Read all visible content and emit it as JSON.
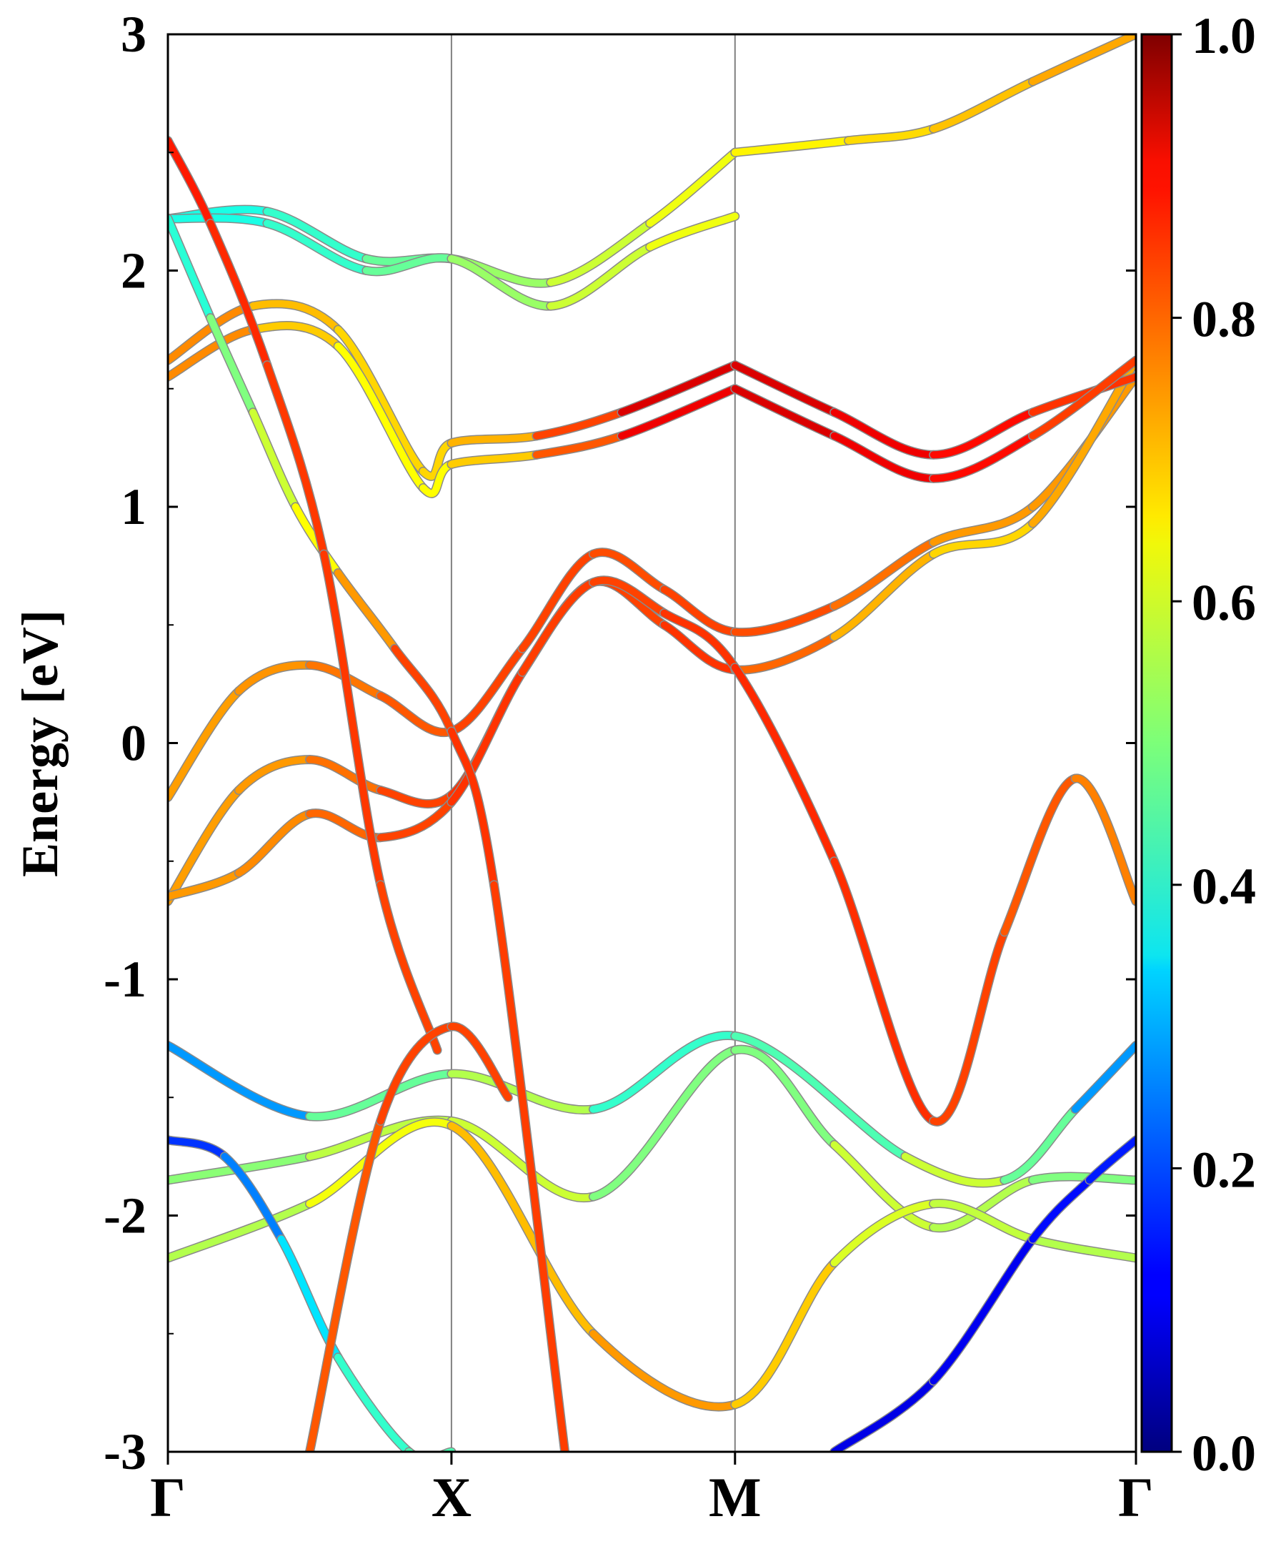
{
  "chart_data": {
    "type": "line",
    "title": "",
    "xlabel": "",
    "ylabel": "Energy [eV]",
    "ylim": [
      -3,
      3
    ],
    "x_ticks": [
      "Γ",
      "X",
      "M",
      "Γ"
    ],
    "x_tick_positions": [
      0,
      1,
      2,
      3.414
    ],
    "y_ticks": [
      "-3",
      "-2",
      "-1",
      "0",
      "1",
      "2",
      "3"
    ],
    "colorbar": {
      "min": 0.0,
      "max": 1.0,
      "colormap": "jet",
      "tick_labels": [
        "0.0",
        "0.2",
        "0.4",
        "0.6",
        "0.8",
        "1.0"
      ]
    },
    "grid": false,
    "series": [
      {
        "x": [
          0,
          0.25,
          0.5,
          0.75,
          1.0,
          1.25,
          1.5,
          1.75,
          2.0,
          2.35,
          2.7,
          3.05,
          3.414
        ],
        "y": [
          -0.23,
          0.22,
          0.33,
          0.2,
          0.05,
          0.4,
          0.8,
          0.65,
          0.47,
          0.58,
          0.85,
          1.0,
          1.55
        ],
        "weight": [
          0.72,
          0.72,
          0.74,
          0.78,
          0.8,
          0.82,
          0.8,
          0.8,
          0.82,
          0.78,
          0.75,
          0.7,
          0.75
        ]
      },
      {
        "x": [
          0,
          0.25,
          0.5,
          0.75,
          1.0,
          1.25,
          1.5,
          1.75,
          2.0,
          2.35,
          2.7,
          3.05,
          3.414
        ],
        "y": [
          -0.67,
          -0.2,
          -0.07,
          -0.2,
          -0.22,
          0.3,
          0.68,
          0.5,
          0.31,
          0.45,
          0.8,
          0.93,
          1.62
        ],
        "weight": [
          0.72,
          0.72,
          0.73,
          0.8,
          0.82,
          0.83,
          0.8,
          0.82,
          0.83,
          0.72,
          0.68,
          0.65,
          0.77
        ]
      },
      {
        "x": [
          0,
          0.25,
          0.5,
          0.75,
          1.0,
          1.25,
          1.5,
          1.75,
          2.0,
          2.35,
          2.7,
          2.95,
          3.2,
          3.414
        ],
        "y": [
          -0.65,
          -0.55,
          -0.3,
          -0.4,
          -0.25,
          0.3,
          0.68,
          0.55,
          0.32,
          -0.5,
          -1.6,
          -0.8,
          -0.15,
          -0.67
        ],
        "weight": [
          0.72,
          0.73,
          0.75,
          0.8,
          0.82,
          0.83,
          0.8,
          0.82,
          0.83,
          0.84,
          0.82,
          0.8,
          0.78,
          0.72
        ]
      },
      {
        "x": [
          0,
          0.5,
          1.0,
          1.5,
          2.0,
          2.6,
          2.95,
          3.2,
          3.414
        ],
        "y": [
          -1.28,
          -1.58,
          -1.4,
          -1.55,
          -1.24,
          -1.75,
          -1.85,
          -1.55,
          -1.28
        ],
        "weight": [
          0.2,
          0.35,
          0.6,
          0.5,
          0.35,
          0.55,
          0.6,
          0.35,
          0.2
        ]
      },
      {
        "x": [
          0,
          0.5,
          1.0,
          1.5,
          2.0,
          2.35,
          2.7,
          3.05,
          3.414
        ],
        "y": [
          -1.85,
          -1.75,
          -1.6,
          -1.92,
          -1.3,
          -1.7,
          -2.05,
          -1.85,
          -1.85
        ],
        "weight": [
          0.5,
          0.52,
          0.6,
          0.55,
          0.45,
          0.55,
          0.6,
          0.5,
          0.5
        ]
      },
      {
        "x": [
          0,
          0.5,
          1.0,
          1.5,
          2.0,
          2.35,
          2.7,
          3.05,
          3.414
        ],
        "y": [
          -2.18,
          -1.95,
          -1.62,
          -2.5,
          -2.8,
          -2.2,
          -1.95,
          -2.1,
          -2.18
        ],
        "weight": [
          0.55,
          0.55,
          0.68,
          0.7,
          0.75,
          0.6,
          0.58,
          0.55,
          0.55
        ]
      },
      {
        "x": [
          0,
          0.35,
          0.7,
          1.0,
          1.35,
          1.7,
          2.0
        ],
        "y": [
          2.22,
          2.25,
          2.05,
          2.05,
          1.95,
          2.2,
          2.5
        ],
        "weight": [
          0.4,
          0.4,
          0.45,
          0.5,
          0.55,
          0.6,
          0.62
        ]
      },
      {
        "x": [
          0,
          0.35,
          0.7,
          1.0,
          1.35,
          1.7,
          2.0
        ],
        "y": [
          2.22,
          2.2,
          2.0,
          2.05,
          1.85,
          2.1,
          2.23
        ],
        "weight": [
          0.4,
          0.4,
          0.45,
          0.5,
          0.55,
          0.6,
          0.62
        ]
      },
      {
        "x": [
          0,
          0.3,
          0.6,
          0.9,
          1.0,
          1.3,
          1.6,
          2.0
        ],
        "y": [
          1.62,
          1.85,
          1.75,
          1.15,
          1.27,
          1.3,
          1.4,
          1.6
        ],
        "weight": [
          0.78,
          0.7,
          0.68,
          0.65,
          0.68,
          0.72,
          0.9,
          0.92
        ]
      },
      {
        "x": [
          0,
          0.3,
          0.6,
          0.9,
          1.0,
          1.3,
          1.6,
          2.0
        ],
        "y": [
          1.55,
          1.75,
          1.68,
          1.08,
          1.18,
          1.22,
          1.3,
          1.5
        ],
        "weight": [
          0.78,
          0.7,
          0.65,
          0.6,
          0.65,
          0.7,
          0.88,
          0.9
        ]
      },
      {
        "x": [
          2.0,
          2.4,
          2.7,
          3.05,
          3.414
        ],
        "y": [
          2.5,
          2.55,
          2.6,
          2.8,
          3.0
        ],
        "weight": [
          0.62,
          0.65,
          0.67,
          0.7,
          0.72
        ]
      },
      {
        "x": [
          2.0,
          2.35,
          2.7,
          3.05,
          3.414
        ],
        "y": [
          1.6,
          1.4,
          1.22,
          1.4,
          1.55
        ],
        "weight": [
          0.92,
          0.9,
          0.88,
          0.85,
          0.8
        ]
      },
      {
        "x": [
          2.0,
          2.35,
          2.7,
          3.05,
          3.414
        ],
        "y": [
          1.5,
          1.3,
          1.12,
          1.3,
          1.62
        ],
        "weight": [
          0.92,
          0.9,
          0.88,
          0.85,
          0.78
        ]
      },
      {
        "x": [
          0,
          0.15,
          0.3,
          0.45,
          0.6,
          0.8,
          1.0,
          1.15,
          1.4
        ],
        "y": [
          2.22,
          1.8,
          1.4,
          1.0,
          0.72,
          0.4,
          0.05,
          -0.6,
          -3.0
        ],
        "weight": [
          0.38,
          0.45,
          0.55,
          0.6,
          0.65,
          0.8,
          0.82,
          0.83,
          0.8
        ]
      },
      {
        "x": [
          0,
          0.2,
          0.4,
          0.6,
          0.85,
          1.0
        ],
        "y": [
          -1.68,
          -1.75,
          -2.1,
          -2.6,
          -3.0,
          -3.0
        ],
        "weight": [
          0.15,
          0.2,
          0.3,
          0.4,
          0.45,
          0.45
        ]
      },
      {
        "x": [
          2.35,
          2.7,
          3.05,
          3.25,
          3.414
        ],
        "y": [
          -3.0,
          -2.7,
          -2.1,
          -1.85,
          -1.68
        ],
        "weight": [
          0.1,
          0.1,
          0.12,
          0.15,
          0.15
        ]
      },
      {
        "x": [
          0,
          0.15,
          0.35,
          0.55,
          0.75,
          0.95
        ],
        "y": [
          2.55,
          2.2,
          1.6,
          0.8,
          -0.6,
          -1.3
        ],
        "weight": [
          0.85,
          0.85,
          0.82,
          0.82,
          0.82,
          0.8
        ]
      },
      {
        "x": [
          0.5,
          0.75,
          1.0,
          1.2
        ],
        "y": [
          -3.0,
          -1.6,
          -1.2,
          -1.5
        ],
        "weight": [
          0.78,
          0.8,
          0.82,
          0.8
        ]
      }
    ]
  }
}
